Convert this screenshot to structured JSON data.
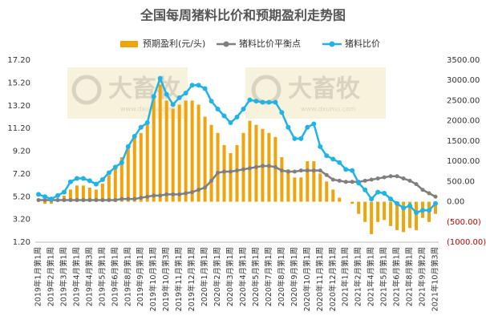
{
  "chart_data": {
    "type": "combo",
    "title": "全国每周猪料比价和预期盈利走势图",
    "categories": [
      "2019年1月第1周",
      null,
      "2019年2月第1周",
      null,
      "2019年3月第1周",
      null,
      "2019年4月第1周",
      null,
      "2019年4月第3周",
      null,
      "2019年5月第1周",
      null,
      "2019年6月第1周",
      null,
      "2019年8月第1周",
      null,
      "2019年9月第1周",
      null,
      "2019年10月第1周",
      null,
      "2019年10月第3周",
      null,
      "2019年11月第1周",
      null,
      "2019年12月第1周",
      null,
      "2020年1月第1周",
      null,
      "2020年2月第1周",
      null,
      "2020年3月第1周",
      null,
      "2020年4月第1周",
      null,
      "2020年5月第1周",
      null,
      "2020年7月第1周",
      null,
      "2020年8月第1周",
      null,
      "2020年9月第1周",
      null,
      "2020年10月第1周",
      null,
      "2020年11月第1周",
      null,
      "2020年12月第1周",
      null,
      "2021年1月第1周",
      null,
      "2021年2月第1周",
      null,
      "2021年4月第1周",
      null,
      "2021年5月第1周",
      null,
      "2021年6月第1周",
      null,
      "2021年8月第1周",
      null,
      "2021年9月第2周",
      null,
      "2021年10月第3周"
    ],
    "series": [
      {
        "name": "预期盈利(元/头)",
        "kind": "bar",
        "axis": "y2",
        "color": "#f0a30a",
        "values": [
          0,
          -50,
          -50,
          50,
          150,
          300,
          400,
          400,
          350,
          300,
          450,
          650,
          900,
          1100,
          1400,
          1600,
          1700,
          1900,
          2600,
          2900,
          2500,
          2300,
          2400,
          2500,
          2500,
          2400,
          2100,
          1900,
          1700,
          1400,
          1200,
          1400,
          1700,
          2000,
          1900,
          1800,
          1700,
          1600,
          1100,
          800,
          600,
          600,
          1000,
          1000,
          700,
          500,
          300,
          100,
          0,
          -50,
          -300,
          -500,
          -800,
          -500,
          -450,
          -600,
          -700,
          -750,
          -650,
          -700,
          -400,
          -500,
          -300
        ]
      },
      {
        "name": "猪料比价平衡点",
        "kind": "line",
        "color": "#7f7f7f",
        "values": [
          4.9,
          4.9,
          4.9,
          4.9,
          4.9,
          4.9,
          4.9,
          4.9,
          4.9,
          4.9,
          4.9,
          4.9,
          4.9,
          5.0,
          5.0,
          5.0,
          5.1,
          5.2,
          5.3,
          5.3,
          5.4,
          5.4,
          5.4,
          5.5,
          5.6,
          5.8,
          6.0,
          6.6,
          7.3,
          7.4,
          7.4,
          7.5,
          7.6,
          7.7,
          7.8,
          7.9,
          7.9,
          7.8,
          7.5,
          7.4,
          7.4,
          7.5,
          7.5,
          7.5,
          7.5,
          7.1,
          6.7,
          6.6,
          6.5,
          6.5,
          6.5,
          6.6,
          6.7,
          6.8,
          6.9,
          7.0,
          7.0,
          6.8,
          6.6,
          6.3,
          5.8,
          5.5,
          5.2
        ]
      },
      {
        "name": "猪料比价",
        "kind": "line",
        "color": "#1fb3e8",
        "values": [
          5.4,
          5.2,
          5.0,
          5.3,
          5.6,
          6.5,
          6.8,
          6.8,
          6.6,
          6.3,
          6.7,
          7.3,
          7.8,
          8.2,
          9.6,
          10.5,
          11.3,
          11.7,
          14.0,
          15.6,
          14.2,
          13.3,
          13.9,
          14.3,
          15.0,
          15.0,
          14.7,
          13.6,
          12.9,
          12.3,
          11.7,
          12.2,
          12.9,
          13.7,
          13.6,
          13.5,
          13.5,
          13.5,
          12.6,
          11.3,
          10.3,
          10.3,
          11.3,
          11.6,
          9.6,
          8.8,
          8.5,
          8.2,
          7.6,
          7.5,
          6.4,
          5.8,
          5.0,
          5.6,
          5.5,
          5.0,
          4.6,
          4.2,
          4.4,
          3.8,
          4.0,
          4.0,
          4.6
        ]
      }
    ],
    "ylim": [
      1.2,
      17.2
    ],
    "yticks": [
      {
        "value": 1.2,
        "label": "1.20"
      },
      {
        "value": 3.2,
        "label": "3.20"
      },
      {
        "value": 5.2,
        "label": "5.20"
      },
      {
        "value": 7.2,
        "label": "7.20"
      },
      {
        "value": 9.2,
        "label": "9.20"
      },
      {
        "value": 11.2,
        "label": "11.20"
      },
      {
        "value": 13.2,
        "label": "13.20"
      },
      {
        "value": 15.2,
        "label": "15.20"
      },
      {
        "value": 17.2,
        "label": "17.20"
      }
    ],
    "y2lim": [
      -1000,
      3500
    ],
    "y2ticks": [
      {
        "value": -1000,
        "label": "(1000.00)"
      },
      {
        "value": -500,
        "label": "(500.00)"
      },
      {
        "value": 0,
        "label": "0.00"
      },
      {
        "value": 500,
        "label": "500.00"
      },
      {
        "value": 1000,
        "label": "1000.00"
      },
      {
        "value": 1500,
        "label": "1500.00"
      },
      {
        "value": 2000,
        "label": "2000.00"
      },
      {
        "value": 2500,
        "label": "2500.00"
      },
      {
        "value": 3000,
        "label": "3000.00"
      },
      {
        "value": 3500,
        "label": "3500.00"
      }
    ],
    "y2_negative_color": "#c00000",
    "legend": "top"
  },
  "watermark": {
    "brand": "大畜牧",
    "site": "www.dxumu.com"
  }
}
